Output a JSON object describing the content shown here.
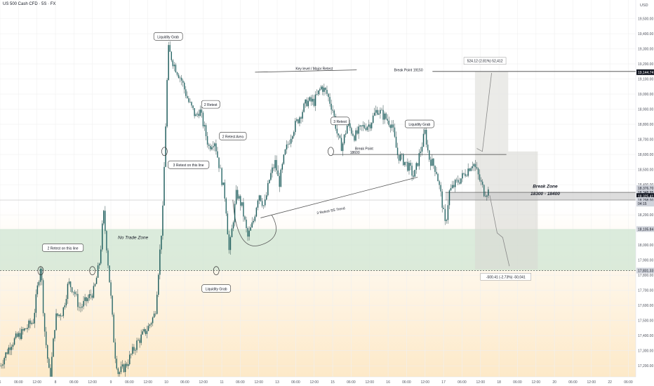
{
  "header": {
    "title": "US 500 Cash CFD · 5S · FX"
  },
  "currency": "USD",
  "colors": {
    "up": "#1a5a5a",
    "down": "#1a5a5a",
    "wick": "#2c4a4a",
    "zone_green": "#cfe6d3",
    "zone_peach": "#fde9c8",
    "grid": "#f0f0f0",
    "text": "#131722",
    "axis_text": "#50535e",
    "price_label_bg": "#131722"
  },
  "chart_data": {
    "type": "candlestick",
    "ylim": [
      17150,
      19600
    ],
    "y_ticks": [
      "19,500.00",
      "19,400.00",
      "19,300.00",
      "19,200.00",
      "19,100.00",
      "19,000.00",
      "18,900.00",
      "18,800.00",
      "18,700.00",
      "18,600.00",
      "18,500.00",
      "18,400.00",
      "18,300.00",
      "18,200.00",
      "18,100.00",
      "18,000.00",
      "17,900.00",
      "17,800.00",
      "17,700.00",
      "17,600.00",
      "17,500.00",
      "17,400.00",
      "17,300.00",
      "17,200.00"
    ],
    "x_ticks": [
      {
        "label": "6",
        "t": 0
      },
      {
        "label": "06:00",
        "t": 0.5
      },
      {
        "label": "12:00",
        "t": 1.0
      },
      {
        "label": "8",
        "t": 1.5
      },
      {
        "label": "06:00",
        "t": 2.0
      },
      {
        "label": "12:00",
        "t": 2.5
      },
      {
        "label": "9",
        "t": 3.0
      },
      {
        "label": "06:00",
        "t": 3.5
      },
      {
        "label": "12:00",
        "t": 4.0
      },
      {
        "label": "10",
        "t": 4.5
      },
      {
        "label": "06:00",
        "t": 5.0
      },
      {
        "label": "12:00",
        "t": 5.5
      },
      {
        "label": "11",
        "t": 6.0
      },
      {
        "label": "06:00",
        "t": 6.5
      },
      {
        "label": "12:00",
        "t": 7.0
      },
      {
        "label": "13",
        "t": 7.5
      },
      {
        "label": "06:00",
        "t": 8.0
      },
      {
        "label": "12:00",
        "t": 8.5
      },
      {
        "label": "15",
        "t": 9.0
      },
      {
        "label": "06:00",
        "t": 9.5
      },
      {
        "label": "12:00",
        "t": 10.0
      },
      {
        "label": "16",
        "t": 10.5
      },
      {
        "label": "06:00",
        "t": 11.0
      },
      {
        "label": "12:00",
        "t": 11.5
      },
      {
        "label": "17",
        "t": 12.0
      },
      {
        "label": "06:00",
        "t": 12.5
      },
      {
        "label": "12:00",
        "t": 13.0
      },
      {
        "label": "18",
        "t": 13.5
      },
      {
        "label": "06:00",
        "t": 14.0
      },
      {
        "label": "12:00",
        "t": 14.5
      },
      {
        "label": "20",
        "t": 15.0
      },
      {
        "label": "06:00",
        "t": 15.5
      },
      {
        "label": "12:00",
        "t": 16.0
      },
      {
        "label": "22",
        "t": 16.5
      },
      {
        "label": "06:00",
        "t": 17.0
      }
    ],
    "x_range": [
      0,
      17.2
    ],
    "price_path": [
      [
        0.0,
        17200
      ],
      [
        0.3,
        17350
      ],
      [
        0.6,
        17420
      ],
      [
        0.9,
        17500
      ],
      [
        1.1,
        17880
      ],
      [
        1.2,
        17450
      ],
      [
        1.35,
        17100
      ],
      [
        1.5,
        17520
      ],
      [
        1.7,
        17560
      ],
      [
        1.85,
        17750
      ],
      [
        2.0,
        17700
      ],
      [
        2.15,
        17580
      ],
      [
        2.3,
        17620
      ],
      [
        2.55,
        17700
      ],
      [
        2.7,
        17900
      ],
      [
        2.8,
        18220
      ],
      [
        2.9,
        17950
      ],
      [
        3.0,
        17650
      ],
      [
        3.1,
        17300
      ],
      [
        3.2,
        17150
      ],
      [
        3.4,
        17200
      ],
      [
        3.7,
        17350
      ],
      [
        4.0,
        17450
      ],
      [
        4.2,
        17550
      ],
      [
        4.4,
        18200
      ],
      [
        4.55,
        19300
      ],
      [
        4.7,
        19200
      ],
      [
        4.9,
        19100
      ],
      [
        5.1,
        18950
      ],
      [
        5.3,
        18850
      ],
      [
        5.4,
        18900
      ],
      [
        5.55,
        18750
      ],
      [
        5.65,
        18650
      ],
      [
        5.8,
        18700
      ],
      [
        5.95,
        18500
      ],
      [
        6.1,
        18300
      ],
      [
        6.2,
        17950
      ],
      [
        6.3,
        18150
      ],
      [
        6.4,
        18350
      ],
      [
        6.55,
        18250
      ],
      [
        6.7,
        18050
      ],
      [
        6.85,
        18150
      ],
      [
        7.0,
        18350
      ],
      [
        7.15,
        18250
      ],
      [
        7.3,
        18450
      ],
      [
        7.45,
        18550
      ],
      [
        7.55,
        18400
      ],
      [
        7.7,
        18600
      ],
      [
        7.9,
        18750
      ],
      [
        8.1,
        18850
      ],
      [
        8.3,
        18950
      ],
      [
        8.5,
        18950
      ],
      [
        8.7,
        19050
      ],
      [
        8.85,
        19000
      ],
      [
        9.0,
        18900
      ],
      [
        9.15,
        18700
      ],
      [
        9.25,
        18650
      ],
      [
        9.4,
        18800
      ],
      [
        9.6,
        18720
      ],
      [
        9.8,
        18780
      ],
      [
        10.0,
        18800
      ],
      [
        10.2,
        18900
      ],
      [
        10.4,
        18850
      ],
      [
        10.6,
        18800
      ],
      [
        10.75,
        18600
      ],
      [
        10.95,
        18550
      ],
      [
        11.1,
        18500
      ],
      [
        11.2,
        18450
      ],
      [
        11.35,
        18600
      ],
      [
        11.5,
        18750
      ],
      [
        11.6,
        18580
      ],
      [
        11.8,
        18500
      ],
      [
        11.95,
        18300
      ],
      [
        12.05,
        18120
      ],
      [
        12.15,
        18350
      ],
      [
        12.3,
        18400
      ],
      [
        12.5,
        18450
      ],
      [
        12.65,
        18500
      ],
      [
        12.8,
        18550
      ],
      [
        12.95,
        18450
      ],
      [
        13.1,
        18350
      ],
      [
        13.25,
        18360
      ]
    ],
    "annotations": [
      {
        "text": "Liquidity Grab",
        "t": 4.55,
        "price": 19380
      },
      {
        "text": "2 Retest",
        "t": 5.7,
        "price": 18930
      },
      {
        "text": "2 Retest Area",
        "t": 6.3,
        "price": 18720
      },
      {
        "text": "3 Retest on this line",
        "t": 5.1,
        "price": 18530
      },
      {
        "text": "2 Retest on this line",
        "t": 1.7,
        "price": 17980
      },
      {
        "text": "Liquidity Grab",
        "t": 5.85,
        "price": 17710
      },
      {
        "text": "Key level / Major Retest",
        "t": 8.5,
        "price": 19170
      },
      {
        "text": "3 Retest",
        "t": 9.2,
        "price": 18820
      },
      {
        "text": "Liquidity Grab",
        "t": 11.35,
        "price": 18800
      },
      {
        "text": "Break Point",
        "t": 9.85,
        "price": 18640
      },
      {
        "text": "18600",
        "t": 9.6,
        "price": 18615
      },
      {
        "text": "Break Point 19150",
        "t": 11.05,
        "price": 19160
      },
      {
        "text": "3 Retest SS Trend",
        "t": 8.95,
        "price": 18230
      },
      {
        "text": "No Trade Zone",
        "t": 3.6,
        "price": 18050
      },
      {
        "text": "Break Zone",
        "t": 14.75,
        "price": 18390
      },
      {
        "text": "18300 - 18400",
        "t": 14.75,
        "price": 18340
      }
    ],
    "long_box_label": "524.12 (2.81%) 52,412",
    "short_box_label": "-500.41 (-2.73%) -50,041",
    "price_scale_labels": [
      {
        "text": "19,144.74",
        "price": 19145,
        "dark": true
      },
      {
        "text": "18,376.70",
        "price": 18378,
        "dark": false
      },
      {
        "text": "18,348.95",
        "price": 18349,
        "dark": false
      },
      {
        "text": "18,325.41",
        "price": 18325,
        "dark": true
      },
      {
        "text": "18,298.00",
        "price": 18298,
        "dark": false
      },
      {
        "text": "04:15",
        "price": 18274,
        "dark": false
      },
      {
        "text": "18,105.84",
        "price": 18106,
        "dark": false
      },
      {
        "text": "17,831.33",
        "price": 17831,
        "dark": false
      }
    ],
    "no_trade_zone": [
      17831,
      18106
    ],
    "break_zone": [
      18298,
      18349
    ],
    "break_point_19150": 19150,
    "break_point_18600": 18600
  }
}
